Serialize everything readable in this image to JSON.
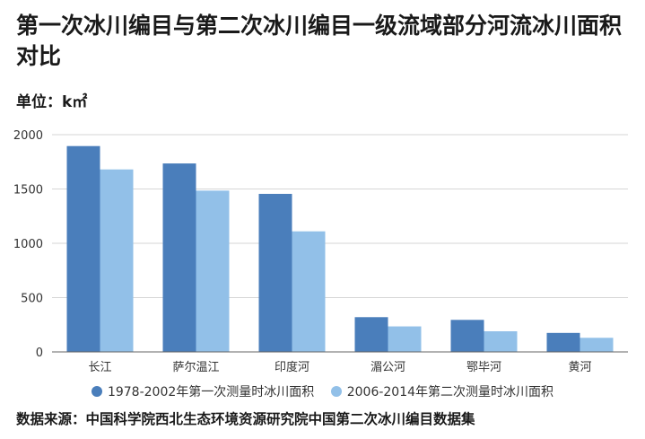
{
  "title": "第一次冰川编目与第二次冰川编目一级流域部分河流冰川面积对比",
  "unit_label": "单位：k㎡",
  "source": "数据来源：中国科学院西北生态环境资源研究院中国第二次冰川编目数据集",
  "chart_data": {
    "type": "bar",
    "categories": [
      "长江",
      "萨尔温江",
      "印度河",
      "湄公河",
      "鄂毕河",
      "黄河"
    ],
    "series": [
      {
        "name": "1978-2002年第一次测量时冰川面积",
        "color": "#4a7ebb",
        "values": [
          1895,
          1735,
          1455,
          320,
          295,
          175
        ]
      },
      {
        "name": "2006-2014年第二次测量时冰川面积",
        "color": "#92c0e8",
        "values": [
          1680,
          1485,
          1110,
          235,
          190,
          130
        ]
      }
    ],
    "yticks": [
      "0",
      "500",
      "1000",
      "1500",
      "2000"
    ],
    "ylim": [
      0,
      2000
    ],
    "grid": true,
    "legend_position": "bottom"
  }
}
